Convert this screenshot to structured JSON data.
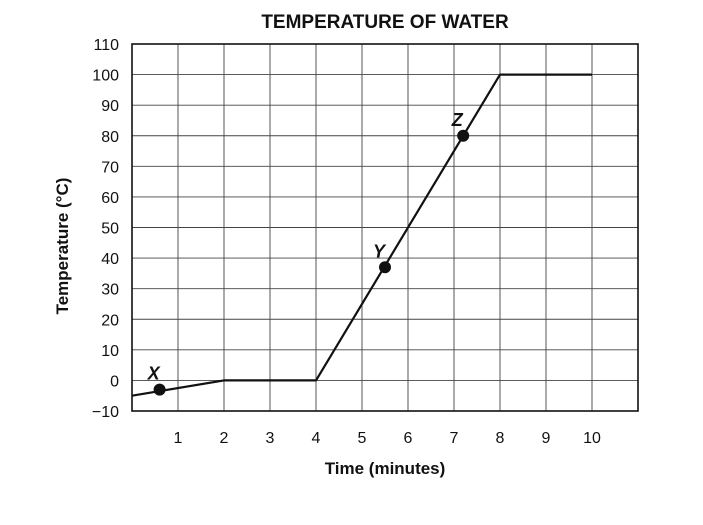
{
  "chart_data": {
    "type": "line",
    "title": "TEMPERATURE OF WATER",
    "xlabel": "Time (minutes)",
    "ylabel": "Temperature (°C)",
    "xlim": [
      0,
      11
    ],
    "ylim": [
      -10,
      110
    ],
    "x_ticks": [
      1,
      2,
      3,
      4,
      5,
      6,
      7,
      8,
      9,
      10
    ],
    "y_ticks": [
      -10,
      0,
      10,
      20,
      30,
      40,
      50,
      60,
      70,
      80,
      90,
      100,
      110
    ],
    "x_tick_labels": [
      "1",
      "2",
      "3",
      "4",
      "5",
      "6",
      "7",
      "8",
      "9",
      "10"
    ],
    "y_tick_labels": [
      "−10",
      "0",
      "10",
      "20",
      "30",
      "40",
      "50",
      "60",
      "70",
      "80",
      "90",
      "100",
      "110"
    ],
    "grid": true,
    "series": [
      {
        "points": [
          {
            "x": 0,
            "y": -5
          },
          {
            "x": 2,
            "y": 0
          },
          {
            "x": 4,
            "y": 0
          },
          {
            "x": 8,
            "y": 100
          },
          {
            "x": 10,
            "y": 100
          }
        ]
      }
    ],
    "marked_points": [
      {
        "label": "X",
        "x": 0.6,
        "y": -3
      },
      {
        "label": "Y",
        "x": 5.5,
        "y": 37
      },
      {
        "label": "Z",
        "x": 7.2,
        "y": 80
      }
    ]
  }
}
